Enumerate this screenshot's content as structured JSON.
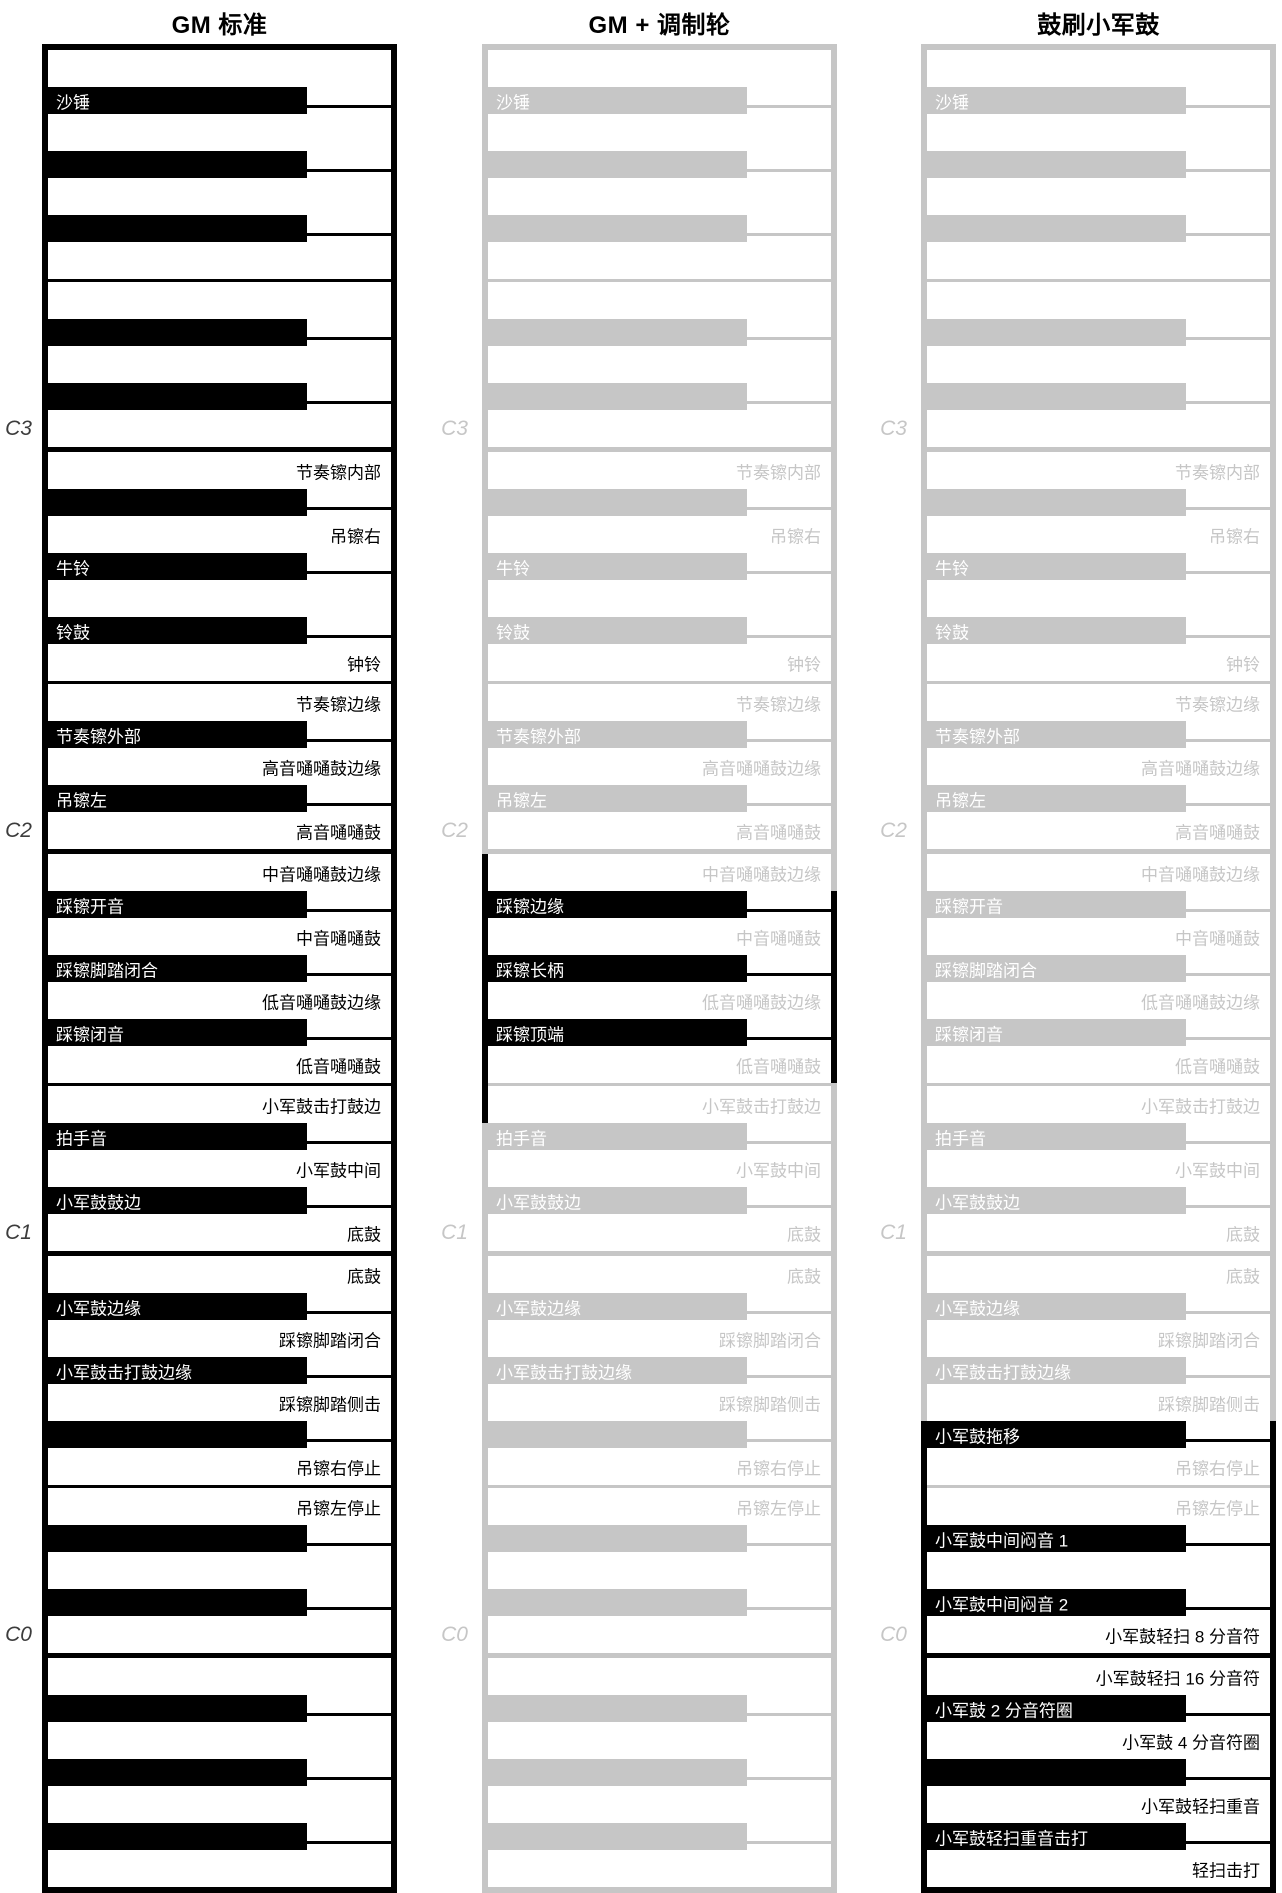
{
  "colors": {
    "ink": "#000000",
    "dim": "#c6c6c6",
    "white": "#ffffff",
    "octave_label_dark": "#3c3c3c"
  },
  "keyboards": [
    {
      "title": "GM 标准",
      "scheme": "ink",
      "keys": [
        {
          "k": "w"
        },
        {
          "k": "b",
          "l": "沙锤"
        },
        {
          "k": "w"
        },
        {
          "k": "b"
        },
        {
          "k": "w"
        },
        {
          "k": "b"
        },
        {
          "k": "w"
        },
        {
          "k": "w"
        },
        {
          "k": "b"
        },
        {
          "k": "w"
        },
        {
          "k": "b"
        },
        {
          "k": "w",
          "oct": "C3"
        },
        {
          "k": "w",
          "l": "节奏镲内部"
        },
        {
          "k": "b"
        },
        {
          "k": "w",
          "l": "吊镲右"
        },
        {
          "k": "b",
          "l": "牛铃"
        },
        {
          "k": "w"
        },
        {
          "k": "b",
          "l": "铃鼓"
        },
        {
          "k": "w",
          "l": "钟铃"
        },
        {
          "k": "w",
          "l": "节奏镲边缘"
        },
        {
          "k": "b",
          "l": "节奏镲外部"
        },
        {
          "k": "w",
          "l": "高音嗵嗵鼓边缘"
        },
        {
          "k": "b",
          "l": "吊镲左"
        },
        {
          "k": "w",
          "l": "高音嗵嗵鼓",
          "oct": "C2"
        },
        {
          "k": "w",
          "l": "中音嗵嗵鼓边缘"
        },
        {
          "k": "b",
          "l": "踩镲开音"
        },
        {
          "k": "w",
          "l": "中音嗵嗵鼓"
        },
        {
          "k": "b",
          "l": "踩镲脚踏闭合"
        },
        {
          "k": "w",
          "l": "低音嗵嗵鼓边缘"
        },
        {
          "k": "b",
          "l": "踩镲闭音"
        },
        {
          "k": "w",
          "l": "低音嗵嗵鼓"
        },
        {
          "k": "w",
          "l": "小军鼓击打鼓边"
        },
        {
          "k": "b",
          "l": "拍手音"
        },
        {
          "k": "w",
          "l": "小军鼓中间"
        },
        {
          "k": "b",
          "l": "小军鼓鼓边"
        },
        {
          "k": "w",
          "l": "底鼓",
          "oct": "C1"
        },
        {
          "k": "w",
          "l": "底鼓"
        },
        {
          "k": "b",
          "l": "小军鼓边缘"
        },
        {
          "k": "w",
          "l": "踩镲脚踏闭合"
        },
        {
          "k": "b",
          "l": "小军鼓击打鼓边缘"
        },
        {
          "k": "w",
          "l": "踩镲脚踏侧击"
        },
        {
          "k": "b"
        },
        {
          "k": "w",
          "l": "吊镲右停止"
        },
        {
          "k": "w",
          "l": "吊镲左停止"
        },
        {
          "k": "b"
        },
        {
          "k": "w"
        },
        {
          "k": "b"
        },
        {
          "k": "w",
          "oct": "C0"
        },
        {
          "k": "w"
        },
        {
          "k": "b"
        },
        {
          "k": "w"
        },
        {
          "k": "b"
        },
        {
          "k": "w"
        },
        {
          "k": "b"
        },
        {
          "k": "w"
        }
      ]
    },
    {
      "title": "GM + 调制轮",
      "scheme": "dim",
      "keys": [
        {
          "k": "w"
        },
        {
          "k": "b",
          "l": "沙锤"
        },
        {
          "k": "w"
        },
        {
          "k": "b"
        },
        {
          "k": "w"
        },
        {
          "k": "b"
        },
        {
          "k": "w"
        },
        {
          "k": "w"
        },
        {
          "k": "b"
        },
        {
          "k": "w"
        },
        {
          "k": "b"
        },
        {
          "k": "w",
          "oct": "C3"
        },
        {
          "k": "w",
          "l": "节奏镲内部"
        },
        {
          "k": "b"
        },
        {
          "k": "w",
          "l": "吊镲右"
        },
        {
          "k": "b",
          "l": "牛铃"
        },
        {
          "k": "w"
        },
        {
          "k": "b",
          "l": "铃鼓"
        },
        {
          "k": "w",
          "l": "钟铃"
        },
        {
          "k": "w",
          "l": "节奏镲边缘"
        },
        {
          "k": "b",
          "l": "节奏镲外部"
        },
        {
          "k": "w",
          "l": "高音嗵嗵鼓边缘"
        },
        {
          "k": "b",
          "l": "吊镲左"
        },
        {
          "k": "w",
          "l": "高音嗵嗵鼓",
          "oct": "C2"
        },
        {
          "k": "w",
          "l": "中音嗵嗵鼓边缘",
          "bl": true
        },
        {
          "k": "b",
          "l": "踩镲边缘",
          "a": true,
          "bl": true,
          "br": true
        },
        {
          "k": "w",
          "l": "中音嗵嗵鼓",
          "bl": true,
          "br": true
        },
        {
          "k": "b",
          "l": "踩镲长柄",
          "a": true,
          "bl": true,
          "br": true
        },
        {
          "k": "w",
          "l": "低音嗵嗵鼓边缘",
          "bl": true,
          "br": true
        },
        {
          "k": "b",
          "l": "踩镲顶端",
          "a": true,
          "bl": true,
          "br": true
        },
        {
          "k": "w",
          "l": "低音嗵嗵鼓",
          "bl": true,
          "br": true
        },
        {
          "k": "w",
          "l": "小军鼓击打鼓边",
          "bl": true
        },
        {
          "k": "b",
          "l": "拍手音"
        },
        {
          "k": "w",
          "l": "小军鼓中间"
        },
        {
          "k": "b",
          "l": "小军鼓鼓边"
        },
        {
          "k": "w",
          "l": "底鼓",
          "oct": "C1"
        },
        {
          "k": "w",
          "l": "底鼓"
        },
        {
          "k": "b",
          "l": "小军鼓边缘"
        },
        {
          "k": "w",
          "l": "踩镲脚踏闭合"
        },
        {
          "k": "b",
          "l": "小军鼓击打鼓边缘"
        },
        {
          "k": "w",
          "l": "踩镲脚踏侧击"
        },
        {
          "k": "b"
        },
        {
          "k": "w",
          "l": "吊镲右停止"
        },
        {
          "k": "w",
          "l": "吊镲左停止"
        },
        {
          "k": "b"
        },
        {
          "k": "w"
        },
        {
          "k": "b"
        },
        {
          "k": "w",
          "oct": "C0"
        },
        {
          "k": "w"
        },
        {
          "k": "b"
        },
        {
          "k": "w"
        },
        {
          "k": "b"
        },
        {
          "k": "w"
        },
        {
          "k": "b"
        },
        {
          "k": "w"
        }
      ]
    },
    {
      "title": "鼓刷小军鼓",
      "scheme": "dim",
      "bottom_black": true,
      "keys": [
        {
          "k": "w"
        },
        {
          "k": "b",
          "l": "沙锤"
        },
        {
          "k": "w"
        },
        {
          "k": "b"
        },
        {
          "k": "w"
        },
        {
          "k": "b"
        },
        {
          "k": "w"
        },
        {
          "k": "w"
        },
        {
          "k": "b"
        },
        {
          "k": "w"
        },
        {
          "k": "b"
        },
        {
          "k": "w",
          "oct": "C3"
        },
        {
          "k": "w",
          "l": "节奏镲内部"
        },
        {
          "k": "b"
        },
        {
          "k": "w",
          "l": "吊镲右"
        },
        {
          "k": "b",
          "l": "牛铃"
        },
        {
          "k": "w"
        },
        {
          "k": "b",
          "l": "铃鼓"
        },
        {
          "k": "w",
          "l": "钟铃"
        },
        {
          "k": "w",
          "l": "节奏镲边缘"
        },
        {
          "k": "b",
          "l": "节奏镲外部"
        },
        {
          "k": "w",
          "l": "高音嗵嗵鼓边缘"
        },
        {
          "k": "b",
          "l": "吊镲左"
        },
        {
          "k": "w",
          "l": "高音嗵嗵鼓",
          "oct": "C2"
        },
        {
          "k": "w",
          "l": "中音嗵嗵鼓边缘"
        },
        {
          "k": "b",
          "l": "踩镲开音"
        },
        {
          "k": "w",
          "l": "中音嗵嗵鼓"
        },
        {
          "k": "b",
          "l": "踩镲脚踏闭合"
        },
        {
          "k": "w",
          "l": "低音嗵嗵鼓边缘"
        },
        {
          "k": "b",
          "l": "踩镲闭音"
        },
        {
          "k": "w",
          "l": "低音嗵嗵鼓"
        },
        {
          "k": "w",
          "l": "小军鼓击打鼓边"
        },
        {
          "k": "b",
          "l": "拍手音"
        },
        {
          "k": "w",
          "l": "小军鼓中间"
        },
        {
          "k": "b",
          "l": "小军鼓鼓边"
        },
        {
          "k": "w",
          "l": "底鼓",
          "oct": "C1"
        },
        {
          "k": "w",
          "l": "底鼓"
        },
        {
          "k": "b",
          "l": "小军鼓边缘"
        },
        {
          "k": "w",
          "l": "踩镲脚踏闭合"
        },
        {
          "k": "b",
          "l": "小军鼓击打鼓边缘"
        },
        {
          "k": "w",
          "l": "踩镲脚踏侧击"
        },
        {
          "k": "b",
          "l": "小军鼓拖移",
          "a": true,
          "bl": true,
          "br": true
        },
        {
          "k": "w",
          "l": "吊镲右停止",
          "bl": true,
          "br": true
        },
        {
          "k": "w",
          "l": "吊镲左停止",
          "bl": true,
          "br": true
        },
        {
          "k": "b",
          "l": "小军鼓中间闷音 1",
          "a": true,
          "bl": true,
          "br": true
        },
        {
          "k": "w",
          "bl": true,
          "br": true
        },
        {
          "k": "b",
          "l": "小军鼓中间闷音 2",
          "a": true,
          "bl": true,
          "br": true
        },
        {
          "k": "w",
          "l": "小军鼓轻扫 8 分音符",
          "a": true,
          "oct": "C0",
          "sb": true,
          "bl": true,
          "br": true
        },
        {
          "k": "w",
          "l": "小军鼓轻扫 16 分音符",
          "a": true,
          "bl": true,
          "br": true
        },
        {
          "k": "b",
          "l": "小军鼓 2 分音符圈",
          "a": true,
          "bl": true,
          "br": true
        },
        {
          "k": "w",
          "l": "小军鼓 4 分音符圈",
          "a": true,
          "bl": true,
          "br": true
        },
        {
          "k": "b",
          "a": true,
          "bl": true,
          "br": true
        },
        {
          "k": "w",
          "l": "小军鼓轻扫重音",
          "a": true,
          "bl": true,
          "br": true
        },
        {
          "k": "b",
          "l": "小军鼓轻扫重音击打",
          "a": true,
          "bl": true,
          "br": true
        },
        {
          "k": "w",
          "l": "轻扫击打",
          "a": true,
          "bl": true,
          "br": true
        }
      ]
    }
  ]
}
